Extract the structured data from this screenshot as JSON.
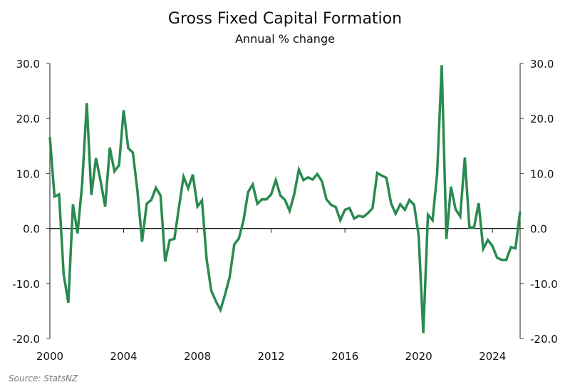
{
  "chart_data": {
    "type": "line",
    "title": "Gross Fixed Capital Formation",
    "subtitle": "Annual % change",
    "source": "Source: StatsNZ",
    "xlabel": "",
    "ylabel": "",
    "frequency": "quarterly",
    "x_start": "2000 Q1",
    "xlim": [
      2000,
      2025.5
    ],
    "ylim": [
      -20,
      30
    ],
    "x_ticks": [
      "2000",
      "2004",
      "2008",
      "2012",
      "2016",
      "2020",
      "2024"
    ],
    "y_ticks_left": [
      "30.0",
      "20.0",
      "10.0",
      "0.0",
      "-10.0",
      "-20.0"
    ],
    "y_ticks_right": [
      "30.0",
      "20.0",
      "10.0",
      "0.0",
      "-10.0",
      "-20.0"
    ],
    "grid": false,
    "line_color": "#2a8a50",
    "series": [
      {
        "values": [
          16.6,
          5.8,
          6.2,
          -8.4,
          -13.5,
          4.4,
          -0.9,
          8.1,
          22.8,
          6.1,
          12.8,
          8.6,
          4.0,
          14.7,
          10.4,
          11.5,
          21.5,
          14.6,
          13.8,
          6.8,
          -2.4,
          4.5,
          5.2,
          7.4,
          6.0,
          -6.0,
          -2.1,
          -1.9,
          3.9,
          9.4,
          7.3,
          9.8,
          4.0,
          5.1,
          -5.6,
          -11.3,
          -13.2,
          -14.8,
          -12.0,
          -8.8,
          -2.9,
          -1.8,
          1.5,
          6.6,
          8.0,
          4.5,
          5.3,
          5.3,
          6.2,
          8.8,
          6.0,
          5.2,
          3.2,
          6.2,
          10.7,
          8.8,
          9.3,
          8.9,
          9.9,
          8.6,
          5.3,
          4.3,
          3.9,
          1.5,
          3.4,
          3.7,
          1.8,
          2.3,
          2.1,
          2.8,
          3.7,
          10.1,
          9.6,
          9.2,
          4.6,
          2.7,
          4.4,
          3.4,
          5.2,
          4.3,
          -1.3,
          -19.0,
          2.5,
          1.5,
          9.9,
          29.7,
          -1.9,
          7.6,
          3.5,
          2.2,
          12.9,
          0.2,
          0.2,
          4.6,
          -3.7,
          -2.1,
          -3.2,
          -5.3,
          -5.7,
          -5.7,
          -3.4,
          -3.6,
          3.1
        ]
      }
    ]
  }
}
